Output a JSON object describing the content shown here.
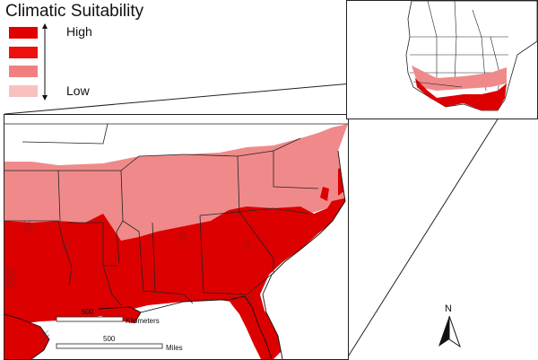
{
  "legend": {
    "title": "Climatic Suitability",
    "high_label": "High",
    "low_label": "Low",
    "classes": [
      {
        "level": "highest",
        "color": "#e00000"
      },
      {
        "level": "high",
        "color": "#ef1010"
      },
      {
        "level": "medium",
        "color": "#f08080"
      },
      {
        "level": "low",
        "color": "#f9c0c0"
      }
    ]
  },
  "scale_bars": {
    "km_value": "500",
    "km_unit": "Kilometers",
    "mi_value": "500",
    "mi_unit": "Miles"
  },
  "north_arrow": {
    "label": "N"
  },
  "colors": {
    "high_suitability": "#dc0000",
    "medium_suitability": "#f08a8a",
    "unsuitable": "#ffffff",
    "borders": "#222222"
  }
}
